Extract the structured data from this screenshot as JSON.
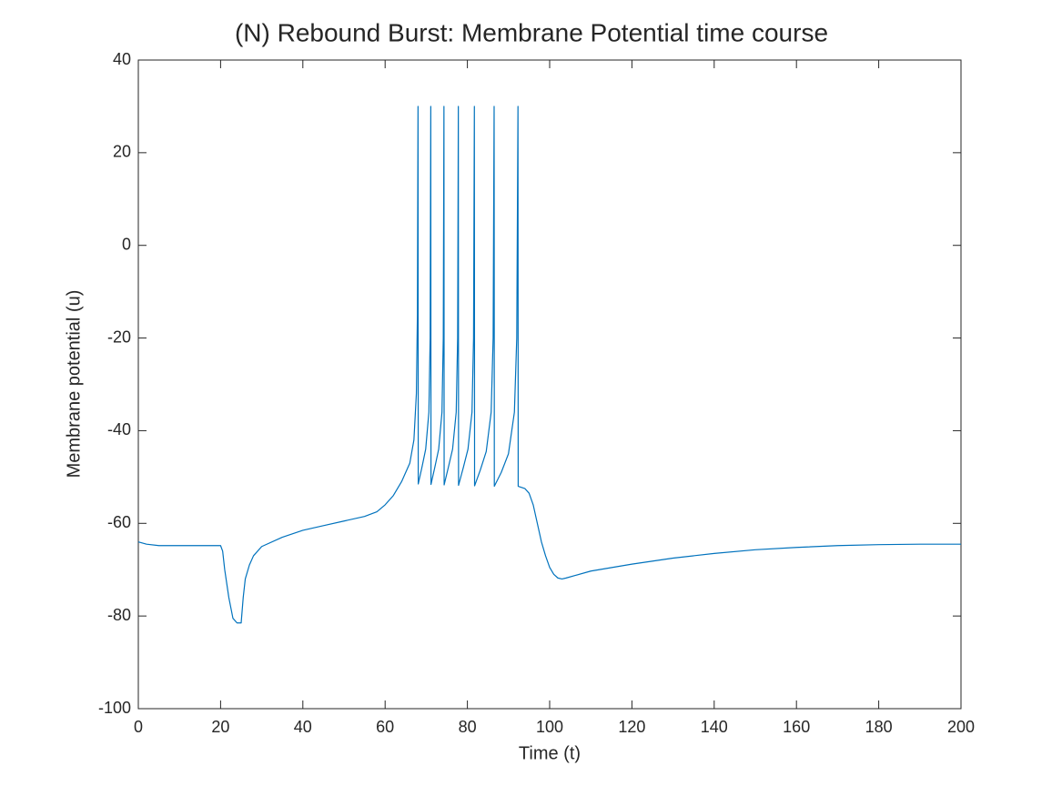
{
  "chart_data": {
    "type": "line",
    "title": "(N) Rebound Burst: Membrane Potential time course",
    "x_label": "Time (t)",
    "y_label": "Membrane potential (u)",
    "xlim": [
      0,
      200
    ],
    "ylim": [
      -100,
      40
    ],
    "xticks": [
      0,
      20,
      40,
      60,
      80,
      100,
      120,
      140,
      160,
      180,
      200
    ],
    "yticks": [
      -100,
      -80,
      -60,
      -40,
      -20,
      0,
      20,
      40
    ],
    "grid": false,
    "series": [
      {
        "color": "#0072bd",
        "x": [
          0,
          2,
          5,
          20,
          20.5,
          21,
          22,
          23,
          24,
          25,
          25.5,
          26,
          27,
          28,
          30,
          35,
          40,
          45,
          50,
          55,
          58,
          60,
          62,
          64,
          66,
          67,
          67.6,
          67.85,
          68.0,
          68.05,
          68.93,
          69.86,
          70.64,
          70.95,
          71.1,
          71.15,
          72.06,
          73.02,
          73.82,
          74.14,
          74.3,
          74.35,
          75.35,
          76.4,
          77.28,
          77.63,
          77.8,
          77.85,
          79.0,
          80.14,
          81.12,
          81.5,
          81.7,
          81.75,
          83.14,
          84.58,
          85.78,
          86.26,
          86.5,
          86.55,
          88.24,
          89.98,
          91.43,
          92.0,
          92.3,
          92.35,
          94,
          95,
          96,
          97,
          98,
          99,
          100,
          101,
          102,
          103,
          104,
          106,
          110,
          120,
          130,
          140,
          150,
          160,
          170,
          180,
          190,
          200
        ],
        "values": [
          -64,
          -64.5,
          -64.8,
          -64.8,
          -66,
          -70,
          -76,
          -80.5,
          -81.5,
          -81.5,
          -76,
          -72,
          -69,
          -67,
          -65,
          -63,
          -61.5,
          -60.5,
          -59.5,
          -58.5,
          -57.5,
          -56,
          -54,
          -51,
          -47,
          -42,
          -32,
          -15,
          30,
          -51.5,
          -48,
          -44,
          -36,
          -20,
          30,
          -51.6,
          -48,
          -44,
          -36,
          -20,
          30,
          -51.7,
          -48,
          -44,
          -36,
          -20,
          30,
          -51.8,
          -48,
          -44,
          -36,
          -20,
          30,
          -51.9,
          -48.5,
          -44.5,
          -36,
          -20,
          30,
          -52,
          -49,
          -45,
          -36,
          -20,
          30,
          -52,
          -52.5,
          -53.5,
          -56,
          -60,
          -64,
          -67,
          -69.5,
          -71,
          -71.8,
          -72,
          -71.8,
          -71.3,
          -70.3,
          -68.8,
          -67.5,
          -66.5,
          -65.7,
          -65.2,
          -64.8,
          -64.6,
          -64.5,
          -64.5
        ]
      }
    ]
  }
}
